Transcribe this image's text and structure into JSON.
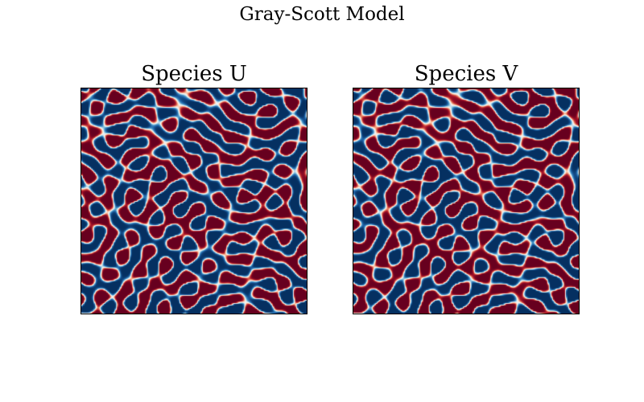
{
  "figure": {
    "title": "Gray-Scott Model"
  },
  "chart_data": [
    {
      "type": "heatmap",
      "title": "Species U",
      "colormap": "RdBu",
      "colormap_reversed": true,
      "axes_visible": false,
      "pattern": "labyrinthine stripes"
    },
    {
      "type": "heatmap",
      "title": "Species V",
      "colormap": "RdBu",
      "colormap_reversed": false,
      "axes_visible": false,
      "pattern": "labyrinthine stripes"
    }
  ]
}
